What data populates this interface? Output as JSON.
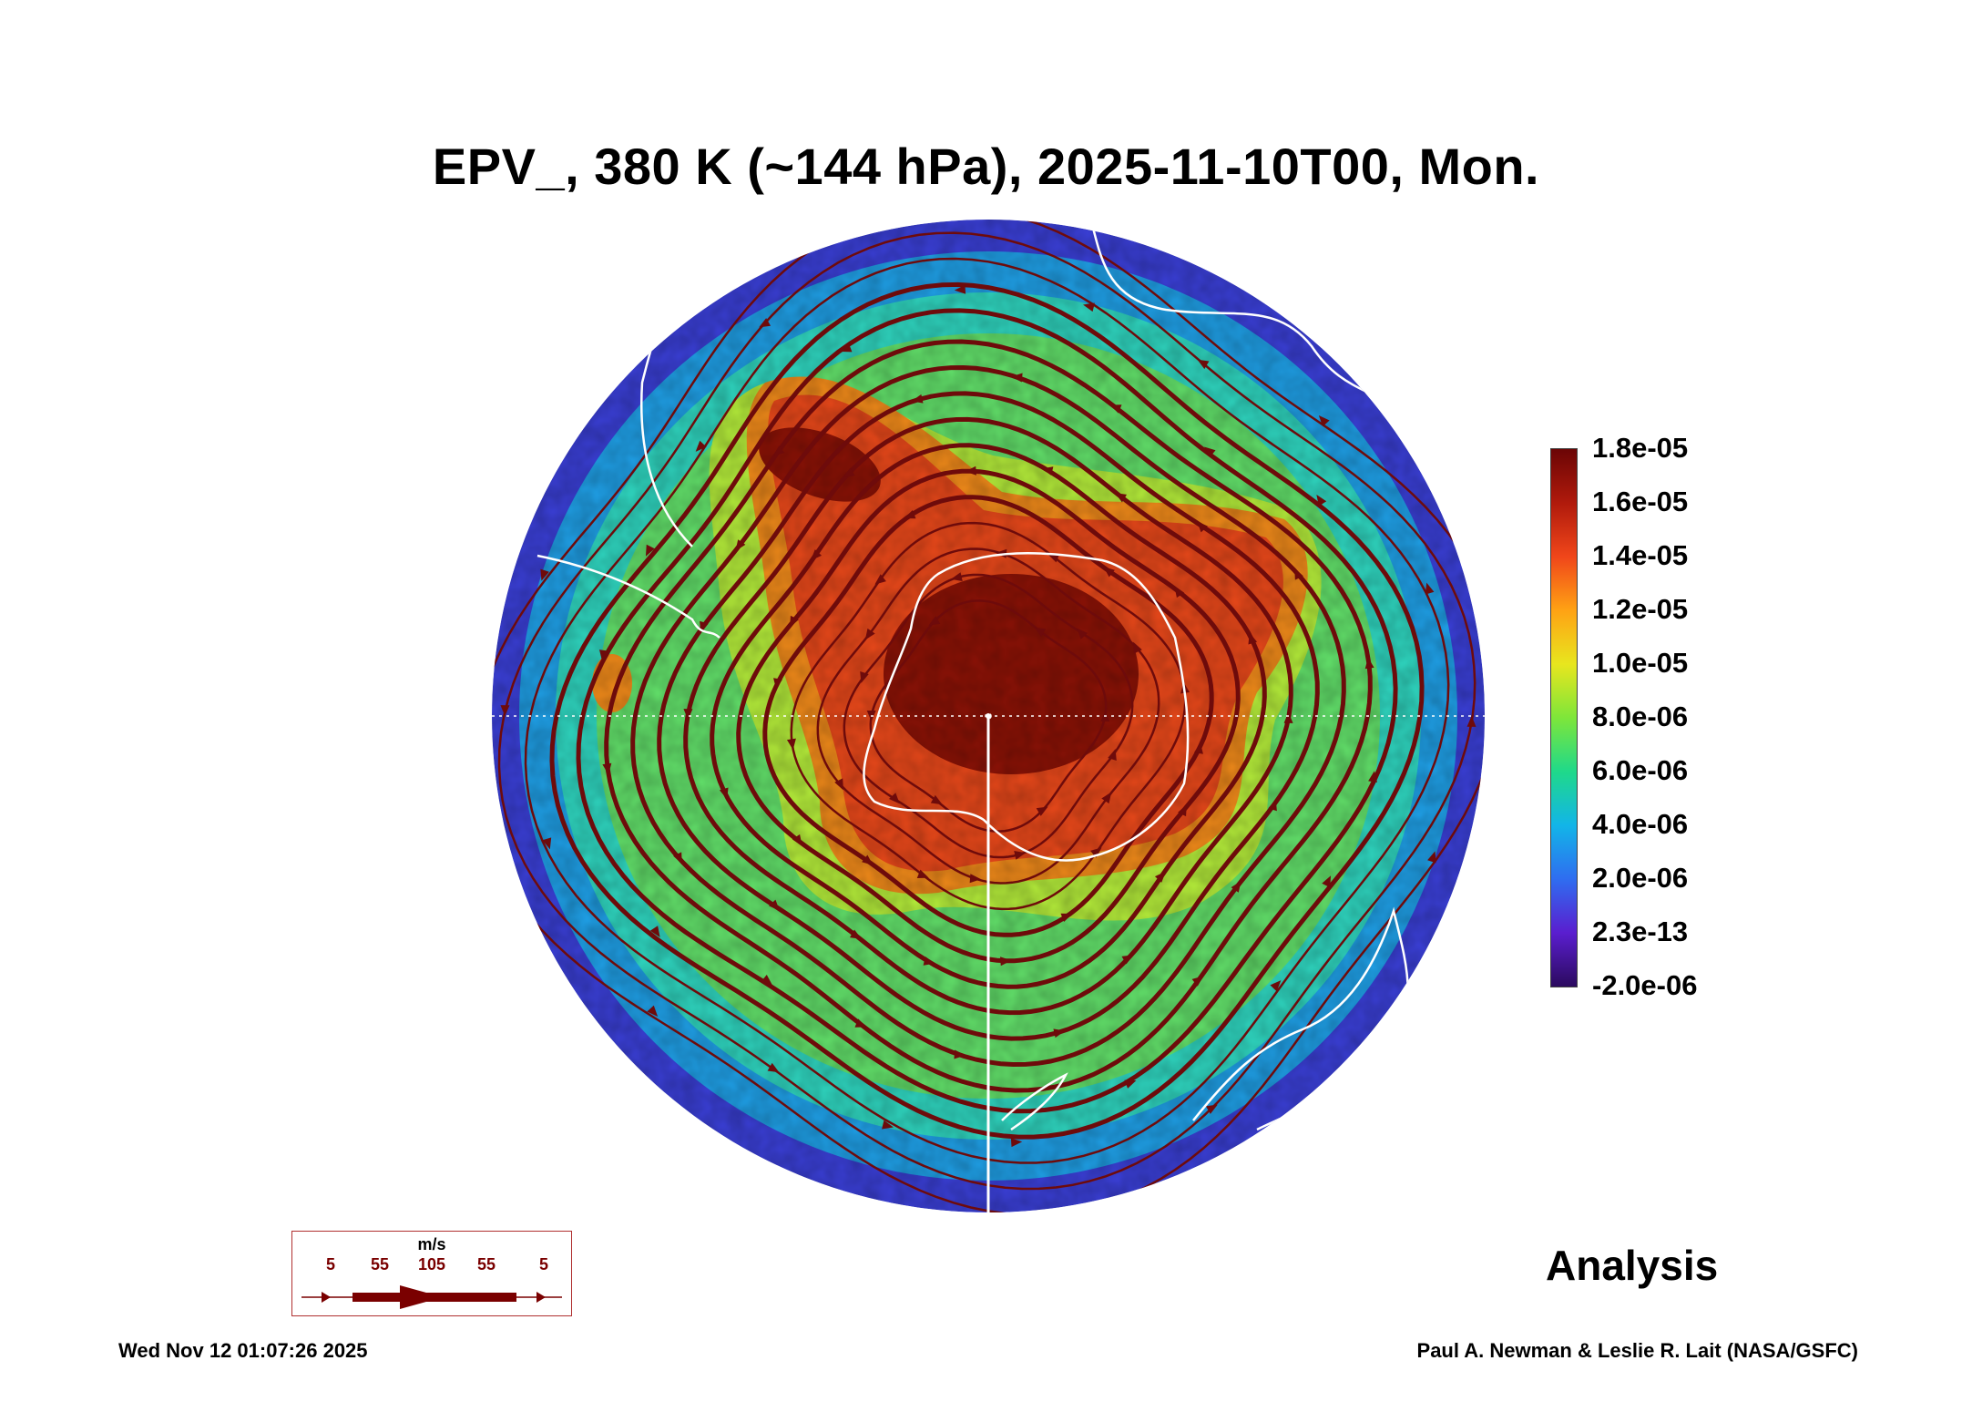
{
  "title": "EPV_, 380 K (~144 hPa), 2025-11-10T00, Mon.",
  "colorbar": {
    "labels": [
      "1.8e-05",
      "1.6e-05",
      "1.4e-05",
      "1.2e-05",
      "1.0e-05",
      "8.0e-06",
      "6.0e-06",
      "4.0e-06",
      "2.0e-06",
      "2.3e-13",
      "-2.0e-06"
    ],
    "colors": [
      "#2b0a5e",
      "#5a1ecf",
      "#2f6df0",
      "#12b5e8",
      "#1fd98a",
      "#7ee63a",
      "#e8e61e",
      "#ffa214",
      "#f0461a",
      "#b01a0c",
      "#6b0505"
    ]
  },
  "wind_key": {
    "unit": "m/s",
    "speeds": [
      "5",
      "55",
      "105",
      "55",
      "5"
    ]
  },
  "analysis_label": "Analysis",
  "footer": {
    "timestamp": "Wed Nov 12 01:07:26 2025",
    "credit": "Paul A. Newman & Leslie R. Lait (NASA/GSFC)"
  },
  "map": {
    "projection": "south-polar-stereographic",
    "field": "EPV",
    "colors": {
      "outer": "#3a3fd6",
      "mid_blue": "#1f9fe6",
      "cyan": "#2fd6c0",
      "green": "#62e06a",
      "light_green": "#b4ec3a",
      "orange": "#f08a1a",
      "red_orange": "#e8481a",
      "dark_red": "#8b1206",
      "streamline": "#6e0b0b",
      "coastline": "#ffffff"
    }
  }
}
